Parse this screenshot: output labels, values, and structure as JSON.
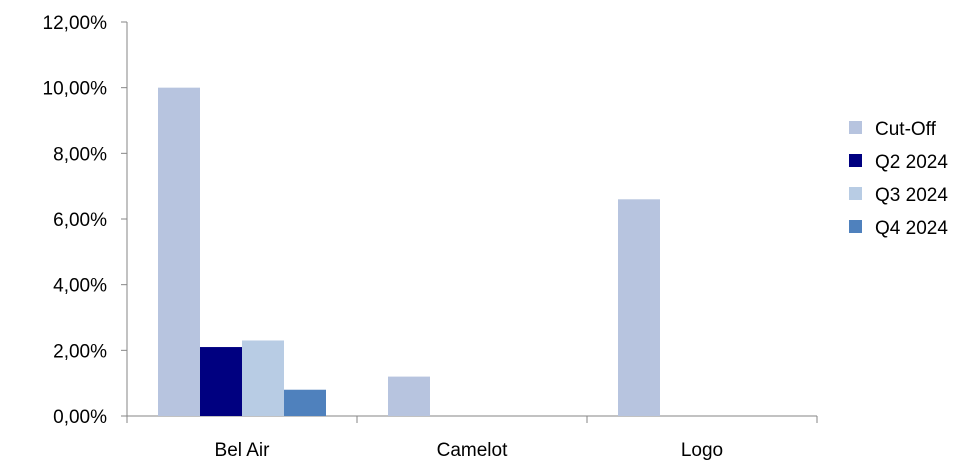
{
  "chart_data": {
    "type": "bar",
    "categories": [
      "Bel Air",
      "Camelot",
      "Logo"
    ],
    "series": [
      {
        "name": "Cut-Off",
        "values": [
          10.0,
          1.2,
          6.6
        ],
        "color": "#b7c4df"
      },
      {
        "name": "Q2 2024",
        "values": [
          2.1,
          0,
          0
        ],
        "color": "#000080"
      },
      {
        "name": "Q3 2024",
        "values": [
          2.3,
          0,
          0
        ],
        "color": "#b8cce4"
      },
      {
        "name": "Q4 2024",
        "values": [
          0.8,
          0,
          0
        ],
        "color": "#4f81bd"
      }
    ],
    "ylim": [
      0,
      12
    ],
    "yticks": [
      0,
      2,
      4,
      6,
      8,
      10,
      12
    ],
    "ytick_labels": [
      "0,00%",
      "2,00%",
      "4,00%",
      "6,00%",
      "8,00%",
      "10,00%",
      "12,00%"
    ],
    "grid": false,
    "legend": "right"
  }
}
